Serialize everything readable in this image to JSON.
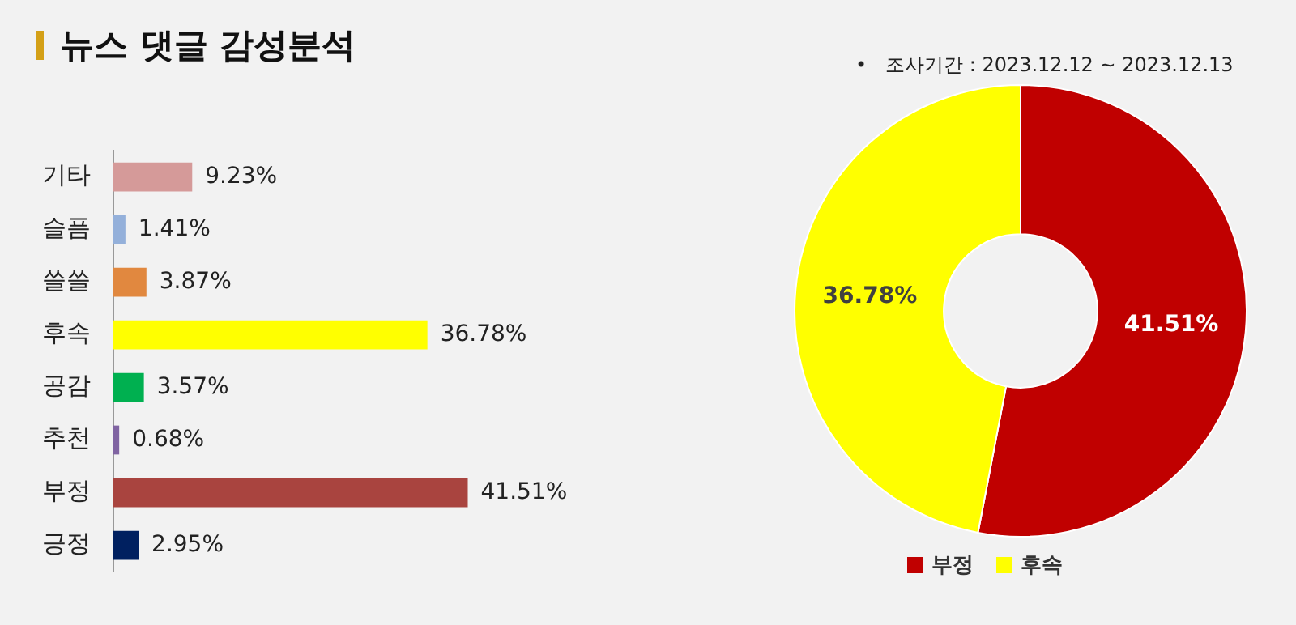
{
  "chart_data": [
    {
      "type": "bar",
      "title": "뉴스 댓글 감성분석",
      "orientation": "horizontal",
      "categories": [
        "기타",
        "슬픔",
        "쓸쓸",
        "후속",
        "공감",
        "추천",
        "부정",
        "긍정"
      ],
      "values": [
        9.23,
        1.41,
        3.87,
        36.78,
        3.57,
        0.68,
        41.51,
        2.95
      ],
      "colors": [
        "#d59a99",
        "#94b0da",
        "#e1883f",
        "#ffff00",
        "#00b050",
        "#8064a2",
        "#a9443f",
        "#002060"
      ],
      "value_labels": [
        "9.23%",
        "1.41%",
        "3.87%",
        "36.78%",
        "3.57%",
        "0.68%",
        "41.51%",
        "2.95%"
      ],
      "legend": false
    },
    {
      "type": "donut",
      "categories": [
        "부정",
        "후속"
      ],
      "values": [
        41.51,
        36.78
      ],
      "colors": [
        "#c00000",
        "#ffff00"
      ],
      "value_labels": [
        "41.51%",
        "36.78%"
      ],
      "legend": "bottom",
      "annotations": [
        "•   조사기간 : 2023.12.12 ~ 2023.12.13"
      ]
    }
  ]
}
